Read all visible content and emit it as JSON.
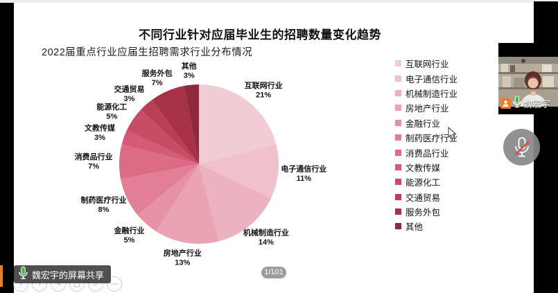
{
  "slide": {
    "title": "不同行业针对应届毕业生的招聘数量变化趋势",
    "subtitle": "2022届重点行业应届生招聘需求行业分布情况"
  },
  "chart_data": {
    "type": "pie",
    "title": "2022届重点行业应届生招聘需求行业分布情况",
    "labels": [
      "互联网行业",
      "电子通信行业",
      "机械制造行业",
      "房地产行业",
      "金融行业",
      "制药医疗行业",
      "消费品行业",
      "文教传媒",
      "能源化工",
      "交通贸易",
      "服务外包",
      "其他"
    ],
    "values": [
      21,
      11,
      14,
      13,
      5,
      8,
      7,
      3,
      5,
      3,
      7,
      3
    ],
    "unit": "%",
    "colors": [
      "#f2ccd5",
      "#f0c0cb",
      "#ecb2c0",
      "#eaa3b3",
      "#e691a6",
      "#e27f96",
      "#dc6c86",
      "#d35b75",
      "#c74d64",
      "#b83f55",
      "#a73247",
      "#8f2a3d"
    ],
    "start_angle_deg": 0,
    "direction": "clockwise",
    "legend_position": "right",
    "labels_outside": true
  },
  "meeting": {
    "participant": {
      "name": "魏宏宇",
      "badge_icon": "host-person-icon",
      "mic_icon": "mic-on-icon"
    },
    "mic_muted_button_icon": "mic-muted-icon",
    "share_banner": {
      "icon": "mic-on-icon",
      "text": "魏宏宇的屏幕共享"
    },
    "page_indicator": "1/101",
    "toolbar_icons": [
      "prev-arrow-icon",
      "next-arrow-icon",
      "pen-icon",
      "stop-square-icon",
      "magnifier-icon",
      "more-dots-icon"
    ],
    "toolbar_glyphs": [
      "‹",
      "›",
      "✎",
      "▢",
      "⌕",
      "⋯"
    ],
    "accent_orange": "#ee7d2a",
    "mic_green": "#3fbb39",
    "slash_red": "#e0493f"
  }
}
